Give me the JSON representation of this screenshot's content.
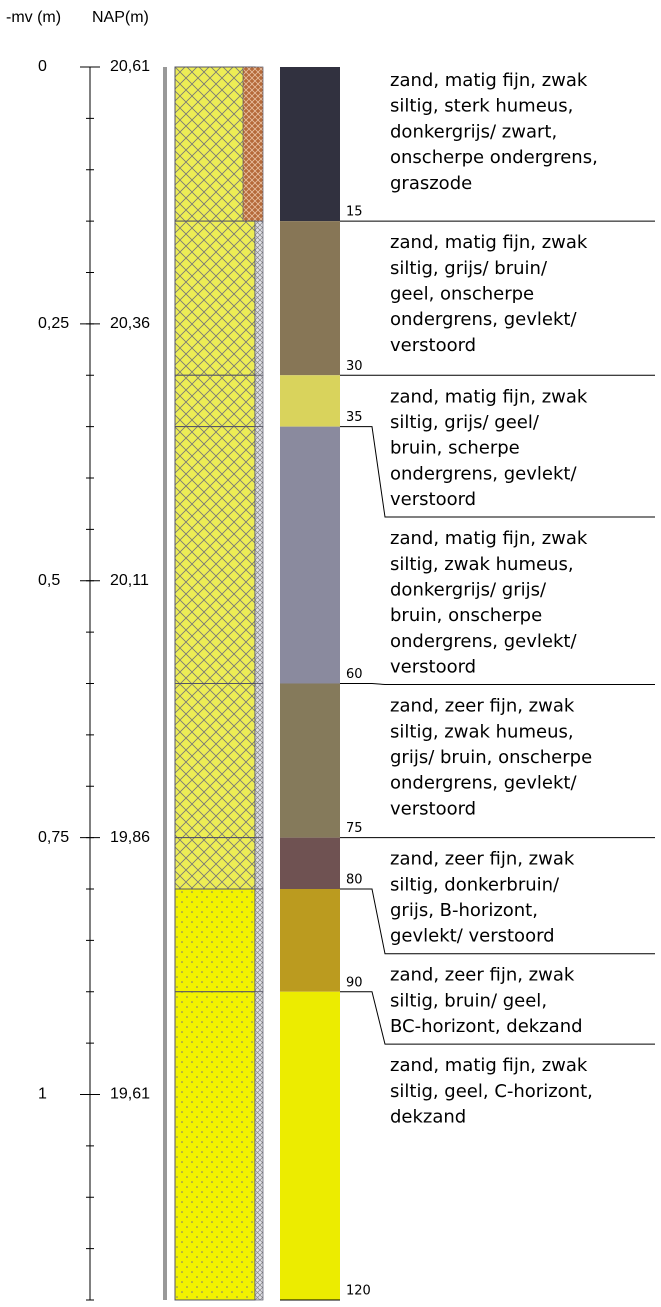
{
  "depth_axis": {
    "title": "-mv (m)",
    "range": [
      0,
      1.2
    ],
    "ticks": [
      0,
      {
        "value": 0.25,
        "label": "0,25"
      },
      {
        "value": 0.5,
        "label": "0,5"
      },
      {
        "value": 0.75,
        "label": "0,75"
      },
      1
    ],
    "minor_tick_step": 0.05
  },
  "nap_axis": {
    "title": "NAP(m)",
    "labels": [
      "20,61",
      "20,36",
      "20,11",
      "19,86",
      "19,61"
    ]
  },
  "boundaries": [
    15,
    30,
    35,
    60,
    75,
    80,
    90,
    120
  ],
  "layers": [
    {
      "color": "#31313f",
      "lithology": "zand-silt",
      "strip": "brown",
      "description": [
        "zand, matig fijn, zwak",
        "siltig, sterk humeus,",
        "donkergrijs/ zwart,",
        "onscherpe ondergrens,",
        "graszode"
      ]
    },
    {
      "color": "#877656",
      "lithology": "zand-silt",
      "strip": "gray",
      "description": [
        "zand, matig fijn, zwak",
        "siltig, grijs/ bruin/",
        "geel, onscherpe",
        "ondergrens, gevlekt/",
        "verstoord"
      ]
    },
    {
      "color": "#d9d35c",
      "lithology": "zand-silt",
      "strip": "gray",
      "description": [
        "zand, matig fijn, zwak",
        "siltig, grijs/ geel/",
        "bruin, scherpe",
        "ondergrens, gevlekt/",
        "verstoord"
      ]
    },
    {
      "color": "#8a8a9e",
      "lithology": "zand-silt",
      "strip": "gray",
      "description": [
        "zand, matig fijn, zwak",
        "siltig, zwak humeus,",
        "donkergrijs/ grijs/",
        "bruin, onscherpe",
        "ondergrens, gevlekt/",
        "verstoord"
      ]
    },
    {
      "color": "#857a5b",
      "lithology": "zand-silt",
      "strip": "gray",
      "description": [
        "zand, zeer fijn, zwak",
        "siltig, zwak humeus,",
        "grijs/ bruin, onscherpe",
        "ondergrens, gevlekt/",
        "verstoord"
      ]
    },
    {
      "color": "#6f5252",
      "lithology": "zand-silt",
      "strip": "gray",
      "description": [
        "zand, zeer fijn, zwak",
        "siltig, donkerbruin/",
        "grijs, B-horizont,",
        "gevlekt/ verstoord"
      ]
    },
    {
      "color": "#bb9b1f",
      "lithology": "zand",
      "strip": "gray",
      "description": [
        "zand, zeer fijn, zwak",
        "siltig, bruin/ geel,",
        "BC-horizont, dekzand"
      ]
    },
    {
      "color": "#ecec00",
      "lithology": "zand",
      "strip": "gray",
      "description": [
        "zand, matig fijn, zwak",
        "siltig, geel, C-horizont,",
        "dekzand"
      ]
    }
  ]
}
